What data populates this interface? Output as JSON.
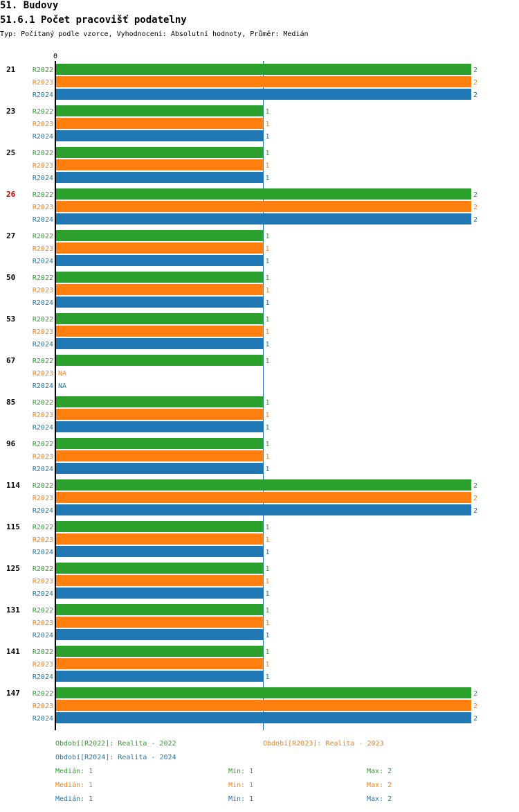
{
  "header": {
    "section_title": "51. Budovy",
    "chart_title": "51.6.1 Počet pracovišť podatelny",
    "subtitle": "Typ: Počítaný podle vzorce, Vyhodnocení: Absolutní hodnoty, Průměr: Medián"
  },
  "colors": {
    "R2022": "#2ca02c",
    "R2023": "#ff7f0e",
    "R2024": "#1f77b4",
    "highlight": "#cc0000"
  },
  "chart_data": {
    "type": "bar",
    "orientation": "horizontal",
    "x_tick_label": "0",
    "xlim": [
      0,
      2
    ],
    "series_names": [
      "R2022",
      "R2023",
      "R2024"
    ],
    "na_label": "NA",
    "groups": [
      {
        "label": "21",
        "values": [
          2,
          2,
          2
        ],
        "highlight": false
      },
      {
        "label": "23",
        "values": [
          1,
          1,
          1
        ],
        "highlight": false
      },
      {
        "label": "25",
        "values": [
          1,
          1,
          1
        ],
        "highlight": false
      },
      {
        "label": "26",
        "values": [
          2,
          2,
          2
        ],
        "highlight": true
      },
      {
        "label": "27",
        "values": [
          1,
          1,
          1
        ],
        "highlight": false
      },
      {
        "label": "50",
        "values": [
          1,
          1,
          1
        ],
        "highlight": false
      },
      {
        "label": "53",
        "values": [
          1,
          1,
          1
        ],
        "highlight": false
      },
      {
        "label": "67",
        "values": [
          1,
          null,
          null
        ],
        "highlight": false
      },
      {
        "label": "85",
        "values": [
          1,
          1,
          1
        ],
        "highlight": false
      },
      {
        "label": "96",
        "values": [
          1,
          1,
          1
        ],
        "highlight": false
      },
      {
        "label": "114",
        "values": [
          2,
          2,
          2
        ],
        "highlight": false
      },
      {
        "label": "115",
        "values": [
          1,
          1,
          1
        ],
        "highlight": false
      },
      {
        "label": "125",
        "values": [
          1,
          1,
          1
        ],
        "highlight": false
      },
      {
        "label": "131",
        "values": [
          1,
          1,
          1
        ],
        "highlight": false
      },
      {
        "label": "141",
        "values": [
          1,
          1,
          1
        ],
        "highlight": false
      },
      {
        "label": "147",
        "values": [
          2,
          2,
          2
        ],
        "highlight": false
      }
    ],
    "median_line_value": 1
  },
  "legend": {
    "r2022": "Období[R2022]: Realita - 2022",
    "r2023": "Období[R2023]: Realita - 2023",
    "r2024": "Období[R2024]: Realita - 2024"
  },
  "stats": [
    {
      "median": "Medián: 1",
      "min": "Min: 1",
      "max": "Max: 2"
    },
    {
      "median": "Medián: 1",
      "min": "Min: 1",
      "max": "Max: 2"
    },
    {
      "median": "Medián: 1",
      "min": "Min: 1",
      "max": "Max: 2"
    }
  ]
}
